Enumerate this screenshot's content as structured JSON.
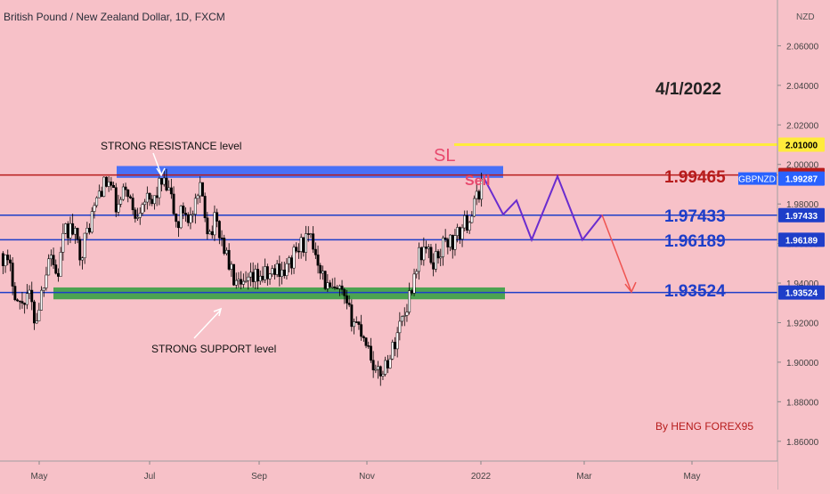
{
  "header": {
    "title": "British Pound / New Zealand Dollar, 1D, FXCM"
  },
  "chart_data": {
    "type": "candlestick",
    "symbol": "GBPNZD",
    "currency": "NZD",
    "ylim": [
      1.85,
      2.08
    ],
    "y_ticks": [
      "1.86000",
      "1.88000",
      "1.90000",
      "1.92000",
      "1.94000",
      "1.96000",
      "1.98000",
      "2.00000",
      "2.02000",
      "2.04000",
      "2.06000"
    ],
    "x_ticks": [
      "May",
      "Jul",
      "Sep",
      "Nov",
      "2022",
      "Mar",
      "May"
    ],
    "date_label": "4/1/2022",
    "author": "By  HENG FOREX95",
    "price_labels": [
      {
        "value": 2.01,
        "text": "2.01000",
        "color": "#ffeb3b",
        "text_color": "#000000"
      },
      {
        "value": 1.99465,
        "text": "1.99465",
        "color": "#b71c1c",
        "text_color": "#ffffff"
      },
      {
        "value": 1.99287,
        "text": "1.99287",
        "color": "#2962ff",
        "text_color": "#ffffff"
      },
      {
        "value": 1.97433,
        "text": "1.97433",
        "color": "#1e3ec9",
        "text_color": "#ffffff"
      },
      {
        "value": 1.96189,
        "text": "1.96189",
        "color": "#1e3ec9",
        "text_color": "#ffffff"
      },
      {
        "value": 1.93524,
        "text": "1.93524",
        "color": "#1e3ec9",
        "text_color": "#ffffff"
      }
    ],
    "symbol_tag": "GBPNZD",
    "levels": [
      {
        "value": 1.99465,
        "label": "1.99465",
        "color": "#b71c1c"
      },
      {
        "value": 1.97433,
        "label": "1.97433",
        "color": "#1e3ec9"
      },
      {
        "value": 1.96189,
        "label": "1.96189",
        "color": "#1e3ec9"
      },
      {
        "value": 1.93524,
        "label": "1.93524",
        "color": "#1e3ec9"
      }
    ],
    "sl": {
      "value": 2.01,
      "label": "SL",
      "color": "#ffeb3b"
    },
    "sell_label": "Sell",
    "resistance_zone": {
      "top": 1.9992,
      "bottom": 1.9932,
      "label": "STRONG RESISTANCE level",
      "color": "#2962ff"
    },
    "support_zone": {
      "top": 1.9378,
      "bottom": 1.9318,
      "label": "STRONG SUPPORT level",
      "color": "#2e9e3c"
    },
    "projection_path": [
      1.9935,
      1.9747,
      1.9818,
      1.9619,
      1.994,
      1.9619,
      1.9745
    ],
    "projection_arrow": [
      1.9745,
      1.9355
    ],
    "colors": {
      "up": "#ffffff",
      "down": "#000000",
      "background": "#f7c1c8",
      "projection": "#6a2ccf",
      "arrow": "#ef5350"
    }
  }
}
